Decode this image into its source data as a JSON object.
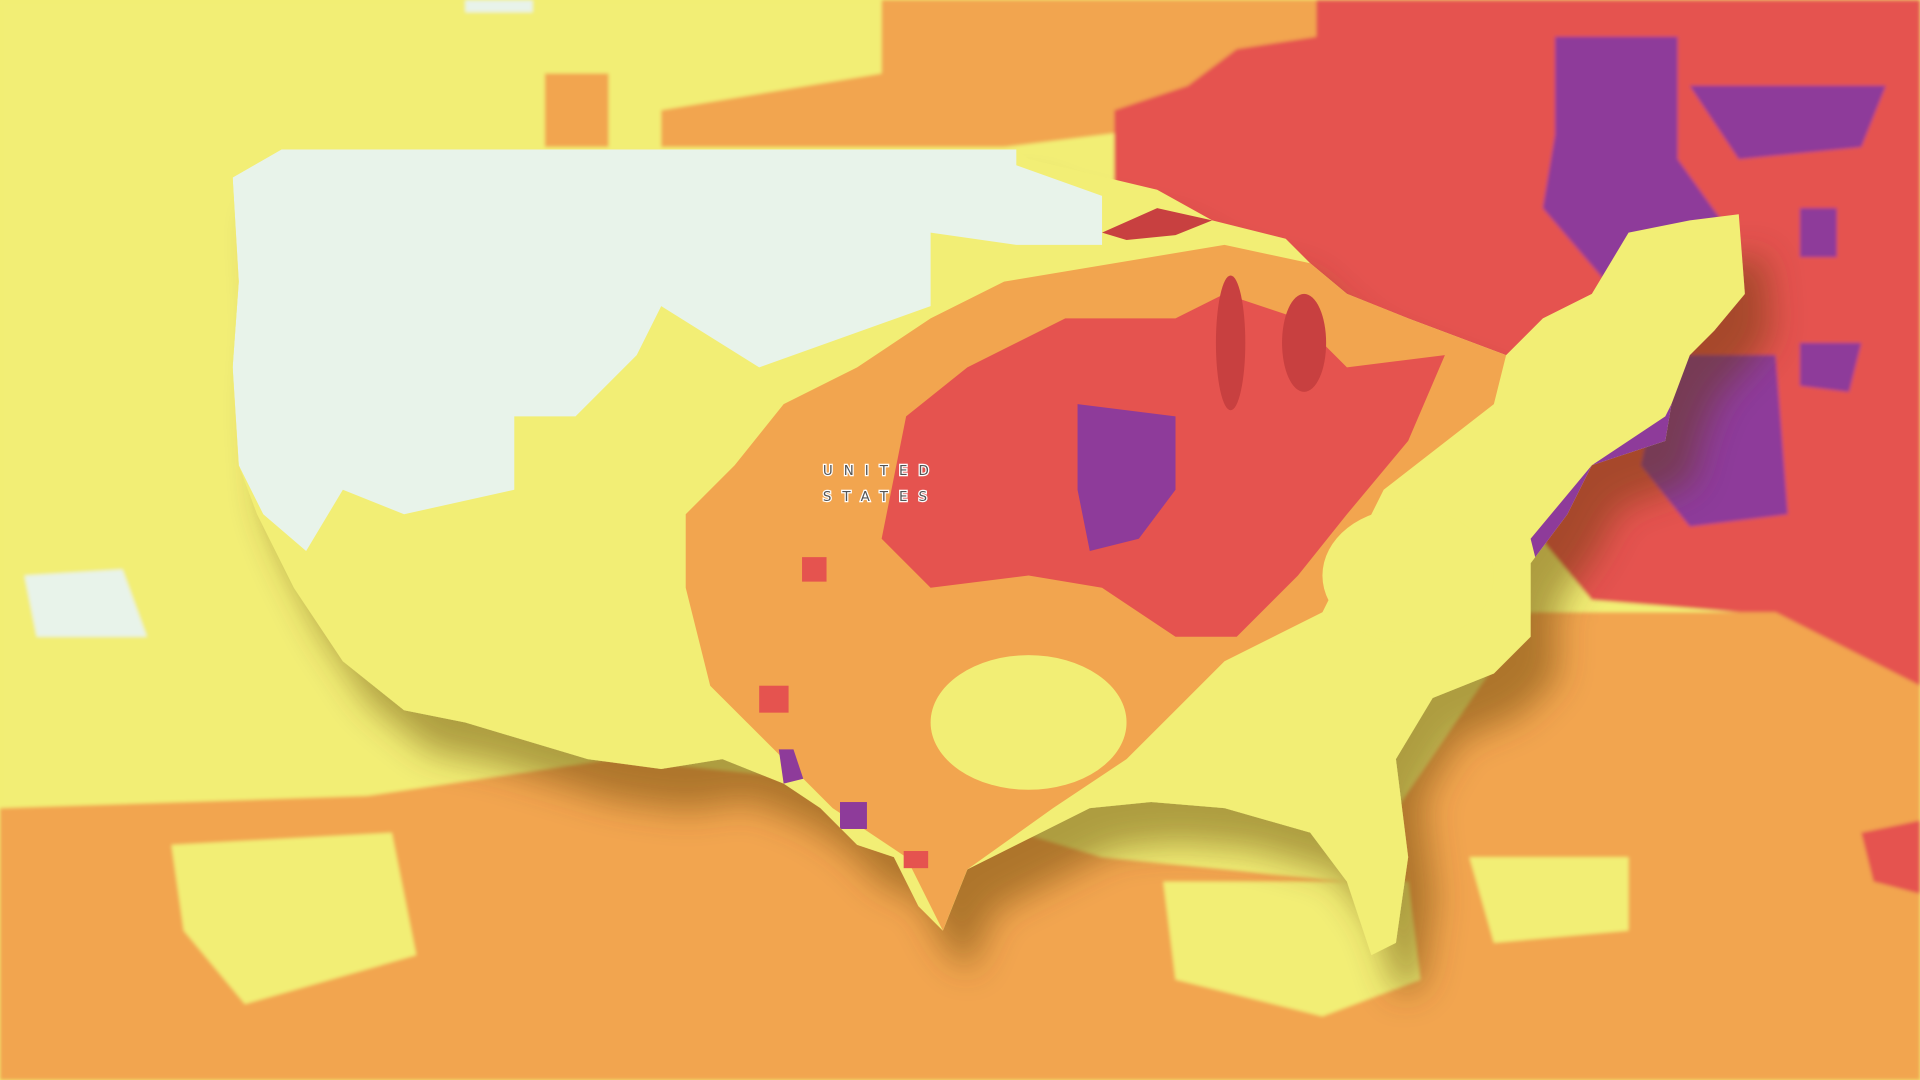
{
  "map": {
    "label": {
      "line1": "UNITED",
      "line2": "STATES"
    }
  }
}
